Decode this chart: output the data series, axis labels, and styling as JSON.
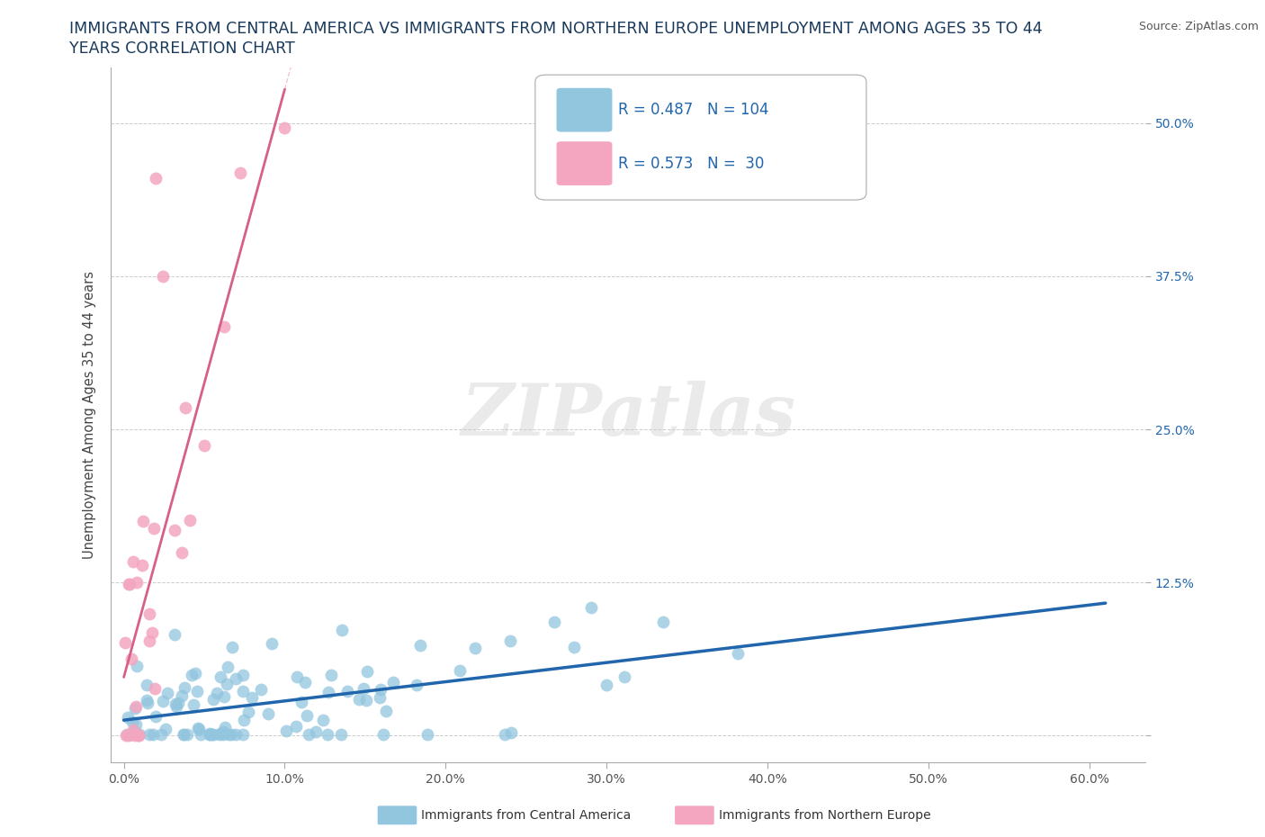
{
  "title_line1": "IMMIGRANTS FROM CENTRAL AMERICA VS IMMIGRANTS FROM NORTHERN EUROPE UNEMPLOYMENT AMONG AGES 35 TO 44",
  "title_line2": "YEARS CORRELATION CHART",
  "source_text": "Source: ZipAtlas.com",
  "ylabel": "Unemployment Among Ages 35 to 44 years",
  "xticks": [
    0.0,
    0.1,
    0.2,
    0.3,
    0.4,
    0.5,
    0.6
  ],
  "xticklabels": [
    "0.0%",
    "10.0%",
    "20.0%",
    "30.0%",
    "40.0%",
    "50.0%",
    "60.0%"
  ],
  "yticks": [
    0.0,
    0.125,
    0.25,
    0.375,
    0.5
  ],
  "yticklabels": [
    "",
    "12.5%",
    "25.0%",
    "37.5%",
    "50.0%"
  ],
  "blue_color": "#92c5de",
  "pink_color": "#f4a6c0",
  "blue_line_color": "#2166ac",
  "pink_line_color": "#d6608a",
  "R_blue": 0.487,
  "N_blue": 104,
  "R_pink": 0.573,
  "N_pink": 30,
  "legend_label_blue": "Immigrants from Central America",
  "legend_label_pink": "Immigrants from Northern Europe",
  "watermark": "ZIPatlas",
  "background_color": "#ffffff",
  "grid_color": "#cccccc",
  "title_color": "#1a3a5c",
  "axis_label_color": "#2166ac",
  "source_color": "#555555",
  "ylabel_color": "#444444"
}
